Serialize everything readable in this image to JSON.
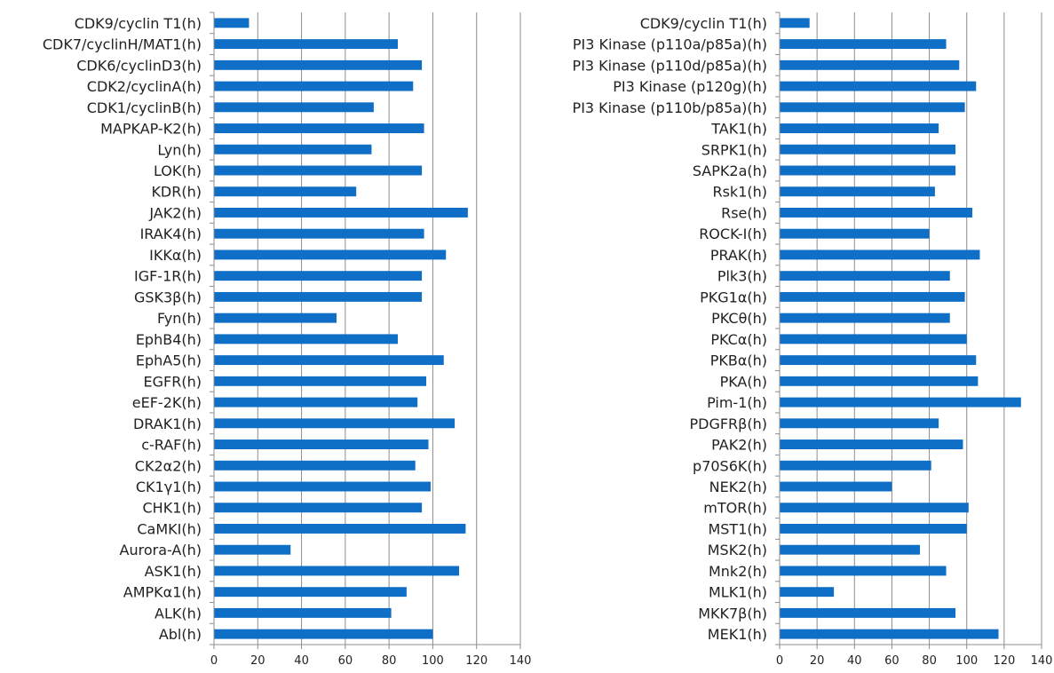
{
  "chart_data": [
    {
      "type": "bar",
      "orientation": "horizontal",
      "xlim": [
        0,
        140
      ],
      "xticks": [
        0,
        20,
        40,
        60,
        80,
        100,
        120,
        140
      ],
      "grid": "vertical",
      "bar_color": "#0F6EC6",
      "categories": [
        "CDK9/cyclin T1(h)",
        "CDK7/cyclinH/MAT1(h)",
        "CDK6/cyclinD3(h)",
        "CDK2/cyclinA(h)",
        "CDK1/cyclinB(h)",
        "MAPKAP-K2(h)",
        "Lyn(h)",
        "LOK(h)",
        "KDR(h)",
        "JAK2(h)",
        "IRAK4(h)",
        "IKKα(h)",
        "IGF-1R(h)",
        "GSK3β(h)",
        "Fyn(h)",
        "EphB4(h)",
        "EphA5(h)",
        "EGFR(h)",
        "eEF-2K(h)",
        "DRAK1(h)",
        "c-RAF(h)",
        "CK2α2(h)",
        "CK1γ1(h)",
        "CHK1(h)",
        "CaMKI(h)",
        "Aurora-A(h)",
        "ASK1(h)",
        "AMPKα1(h)",
        "ALK(h)",
        "Abl(h)"
      ],
      "values": [
        16,
        84,
        95,
        91,
        73,
        96,
        72,
        95,
        65,
        116,
        96,
        106,
        95,
        95,
        56,
        84,
        105,
        97,
        93,
        110,
        98,
        92,
        99,
        95,
        115,
        35,
        112,
        88,
        81,
        100
      ]
    },
    {
      "type": "bar",
      "orientation": "horizontal",
      "xlim": [
        0,
        140
      ],
      "xticks": [
        0,
        20,
        40,
        60,
        80,
        100,
        120,
        140
      ],
      "grid": "vertical",
      "bar_color": "#0F6EC6",
      "categories": [
        "CDK9/cyclin T1(h)",
        "PI3 Kinase (p110a/p85a)(h)",
        "PI3 Kinase (p110d/p85a)(h)",
        "PI3 Kinase (p120g)(h)",
        "PI3 Kinase (p110b/p85a)(h)",
        "TAK1(h)",
        "SRPK1(h)",
        "SAPK2a(h)",
        "Rsk1(h)",
        "Rse(h)",
        "ROCK-I(h)",
        "PRAK(h)",
        "Plk3(h)",
        "PKG1α(h)",
        "PKCθ(h)",
        "PKCα(h)",
        "PKBα(h)",
        "PKA(h)",
        "Pim-1(h)",
        "PDGFRβ(h)",
        "PAK2(h)",
        "p70S6K(h)",
        "NEK2(h)",
        "mTOR(h)",
        "MST1(h)",
        "MSK2(h)",
        "Mnk2(h)",
        "MLK1(h)",
        "MKK7β(h)",
        "MEK1(h)"
      ],
      "values": [
        16,
        89,
        96,
        105,
        99,
        85,
        94,
        94,
        83,
        103,
        80,
        107,
        91,
        99,
        91,
        100,
        105,
        106,
        129,
        85,
        98,
        81,
        60,
        101,
        100,
        75,
        89,
        29,
        94,
        117
      ]
    }
  ]
}
